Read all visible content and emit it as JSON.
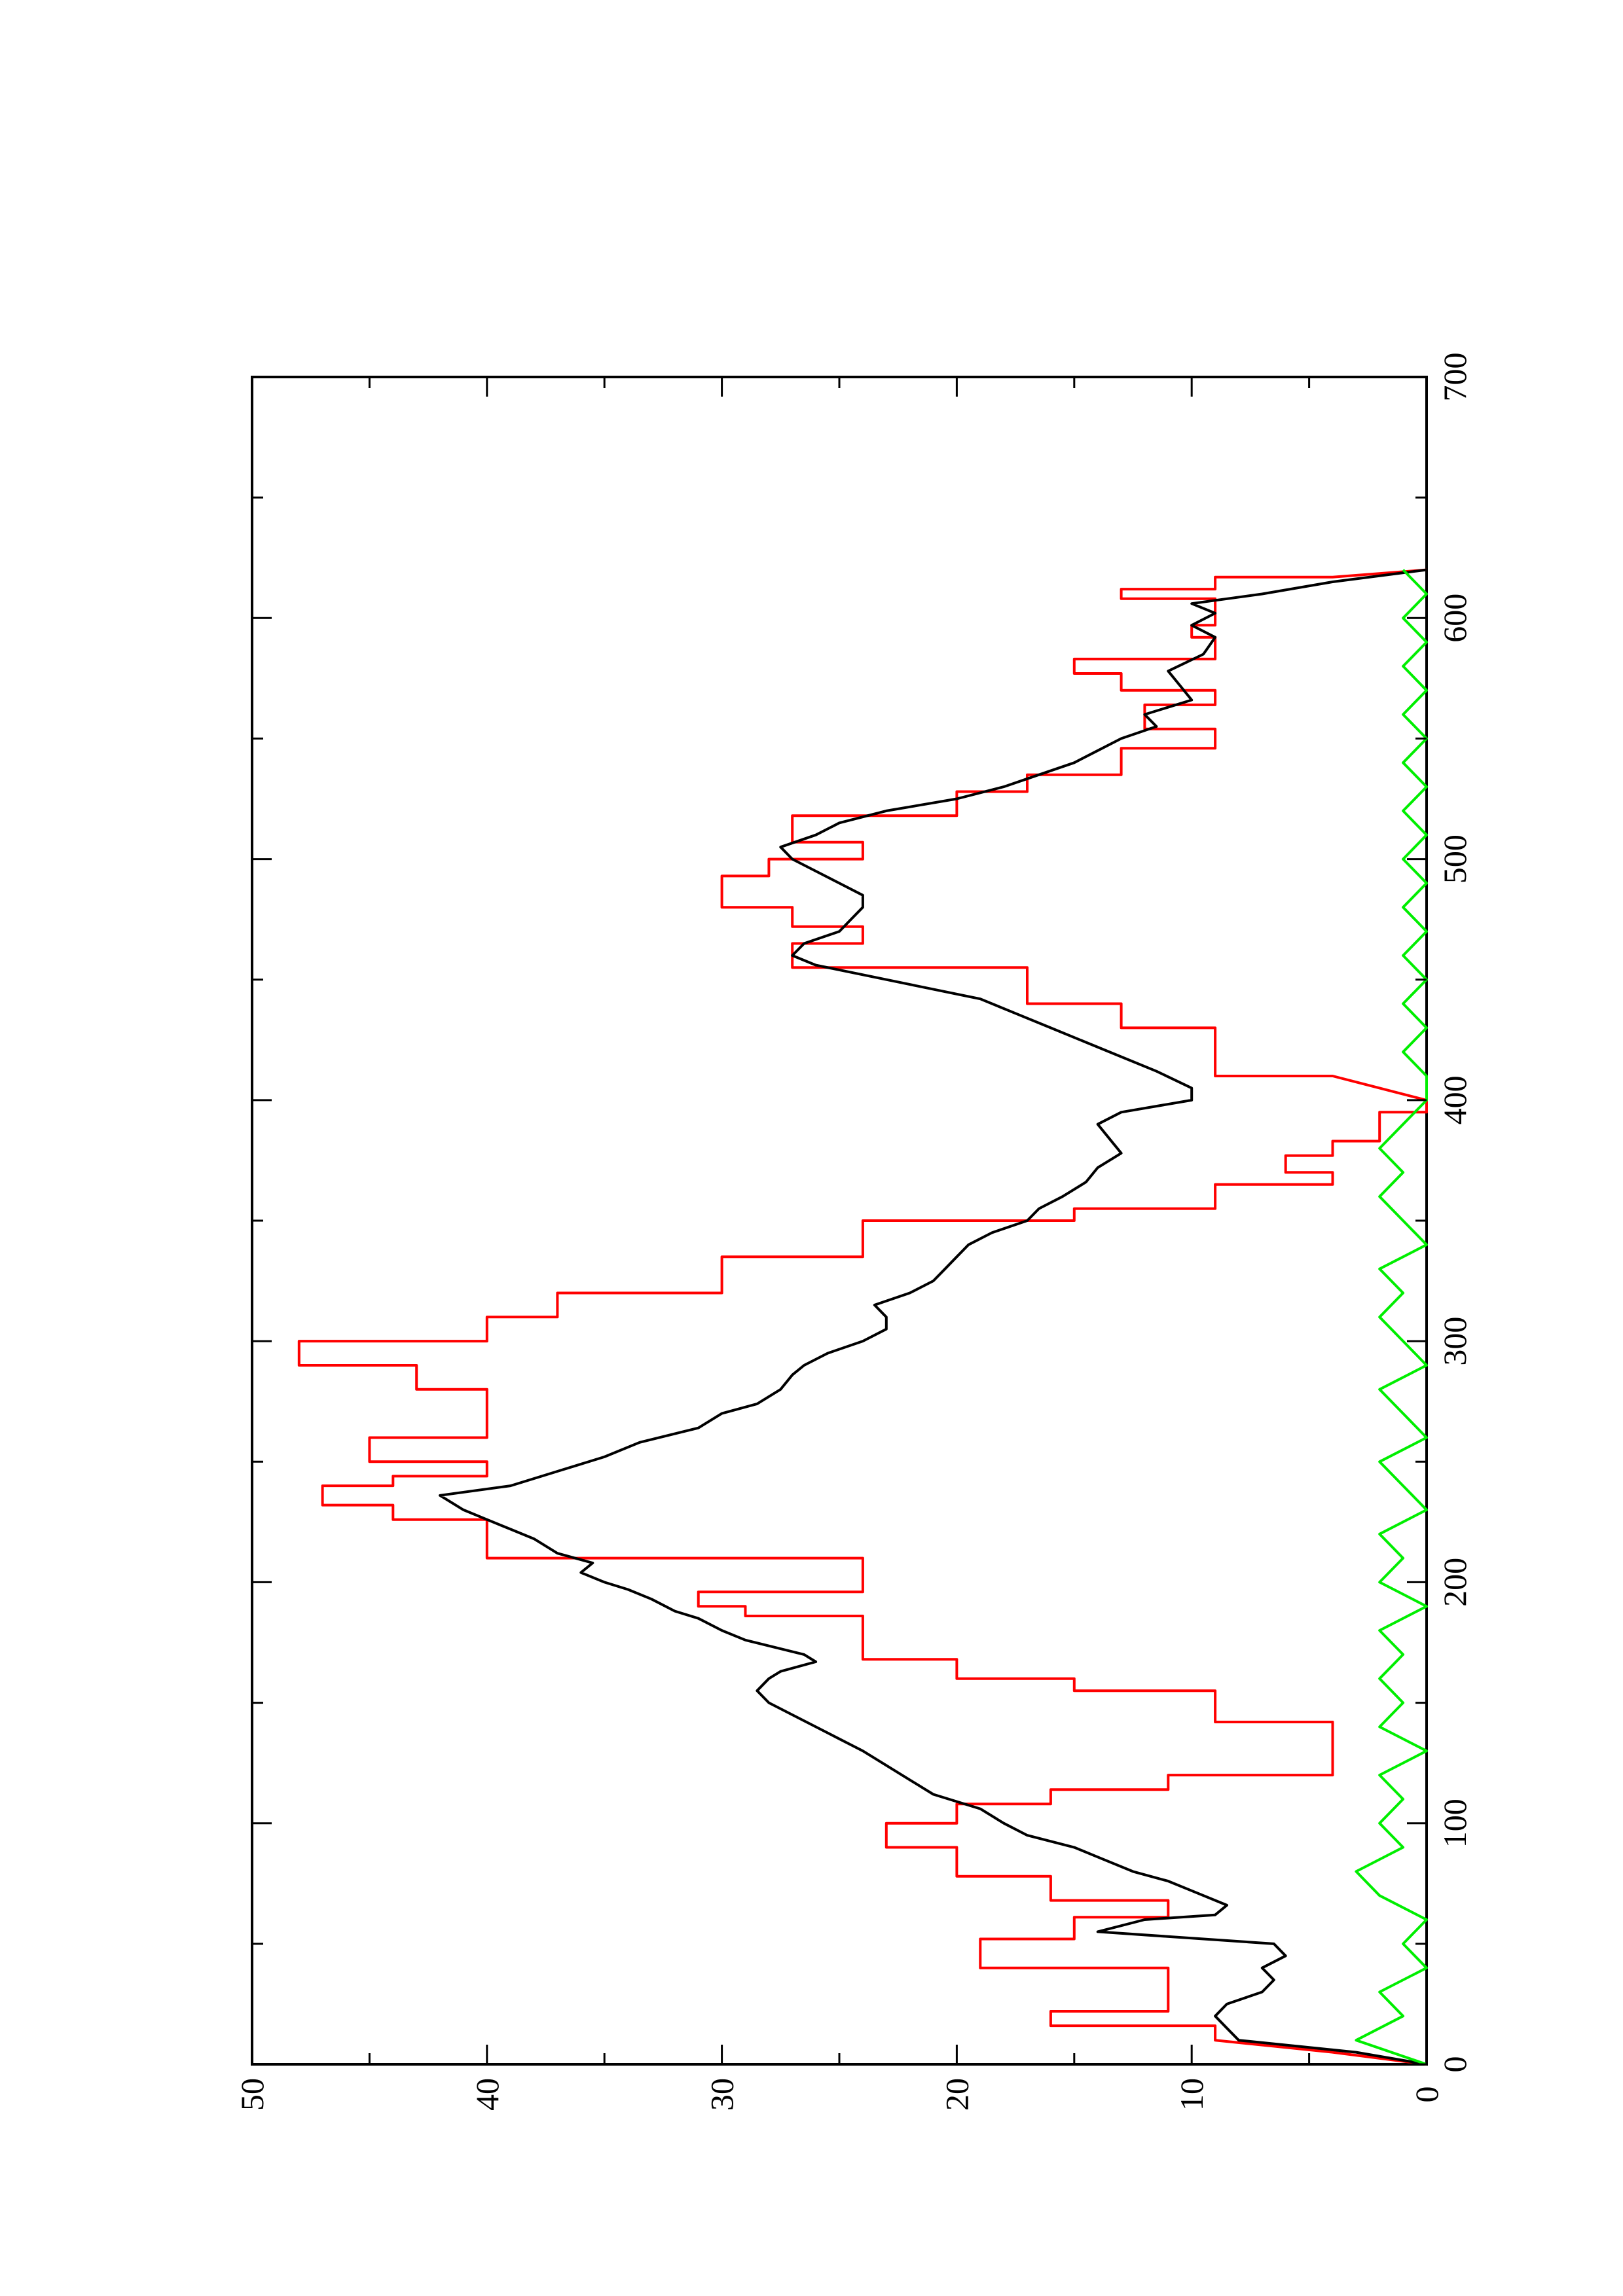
{
  "chart_data": {
    "type": "line",
    "orientation": "rotated-90-ccw",
    "title": "",
    "xlabel": "",
    "ylabel": "",
    "xlim": [
      0,
      700
    ],
    "ylim": [
      0,
      50
    ],
    "x_major_ticks": [
      0,
      100,
      200,
      300,
      400,
      500,
      600,
      700
    ],
    "x_minor_ticks": [
      50,
      150,
      250,
      350,
      450,
      550,
      650
    ],
    "y_major_ticks": [
      0,
      10,
      20,
      30,
      40,
      50
    ],
    "y_minor_ticks": [
      5,
      15,
      25,
      35,
      45
    ],
    "x_tick_labels": [
      "0",
      "100",
      "200",
      "300",
      "400",
      "500",
      "600",
      "700"
    ],
    "y_tick_labels": [
      "0",
      "10",
      "20",
      "30",
      "40",
      "50"
    ],
    "grid": false,
    "legend": "none",
    "series": [
      {
        "color": "#ff0000",
        "points": [
          [
            0,
            0
          ],
          [
            5,
            4
          ],
          [
            10,
            9
          ],
          [
            16,
            9
          ],
          [
            16,
            16
          ],
          [
            22,
            16
          ],
          [
            22,
            11
          ],
          [
            40,
            11
          ],
          [
            40,
            19
          ],
          [
            52,
            19
          ],
          [
            52,
            15
          ],
          [
            61,
            15
          ],
          [
            61,
            11
          ],
          [
            68,
            11
          ],
          [
            68,
            16
          ],
          [
            78,
            16
          ],
          [
            78,
            20
          ],
          [
            90,
            20
          ],
          [
            90,
            23
          ],
          [
            100,
            23
          ],
          [
            100,
            20
          ],
          [
            108,
            20
          ],
          [
            108,
            16
          ],
          [
            114,
            16
          ],
          [
            114,
            11
          ],
          [
            120,
            11
          ],
          [
            120,
            4
          ],
          [
            142,
            4
          ],
          [
            142,
            9
          ],
          [
            155,
            9
          ],
          [
            155,
            15
          ],
          [
            160,
            15
          ],
          [
            160,
            20
          ],
          [
            168,
            20
          ],
          [
            168,
            24
          ],
          [
            186,
            24
          ],
          [
            186,
            29
          ],
          [
            190,
            29
          ],
          [
            190,
            31
          ],
          [
            196,
            31
          ],
          [
            196,
            24
          ],
          [
            210,
            24
          ],
          [
            210,
            40
          ],
          [
            226,
            40
          ],
          [
            226,
            44
          ],
          [
            232,
            44
          ],
          [
            232,
            47
          ],
          [
            240,
            47
          ],
          [
            240,
            44
          ],
          [
            244,
            44
          ],
          [
            244,
            40
          ],
          [
            250,
            40
          ],
          [
            250,
            45
          ],
          [
            260,
            45
          ],
          [
            260,
            40
          ],
          [
            280,
            40
          ],
          [
            280,
            43
          ],
          [
            290,
            43
          ],
          [
            290,
            48
          ],
          [
            300,
            48
          ],
          [
            300,
            40
          ],
          [
            310,
            40
          ],
          [
            310,
            37
          ],
          [
            320,
            37
          ],
          [
            320,
            30
          ],
          [
            335,
            30
          ],
          [
            335,
            24
          ],
          [
            350,
            24
          ],
          [
            350,
            15
          ],
          [
            355,
            15
          ],
          [
            355,
            9
          ],
          [
            365,
            9
          ],
          [
            365,
            4
          ],
          [
            370,
            4
          ],
          [
            370,
            6
          ],
          [
            377,
            6
          ],
          [
            377,
            4
          ],
          [
            383,
            4
          ],
          [
            383,
            2
          ],
          [
            395,
            2
          ],
          [
            395,
            0
          ],
          [
            400,
            0
          ],
          [
            410,
            4
          ],
          [
            410,
            9
          ],
          [
            430,
            9
          ],
          [
            430,
            13
          ],
          [
            440,
            13
          ],
          [
            440,
            17
          ],
          [
            455,
            17
          ],
          [
            455,
            27
          ],
          [
            465,
            27
          ],
          [
            465,
            24
          ],
          [
            472,
            24
          ],
          [
            472,
            27
          ],
          [
            480,
            27
          ],
          [
            480,
            30
          ],
          [
            493,
            30
          ],
          [
            493,
            28
          ],
          [
            500,
            28
          ],
          [
            500,
            24
          ],
          [
            507,
            24
          ],
          [
            507,
            27
          ],
          [
            518,
            27
          ],
          [
            518,
            20
          ],
          [
            528,
            20
          ],
          [
            528,
            17
          ],
          [
            535,
            17
          ],
          [
            535,
            13
          ],
          [
            546,
            13
          ],
          [
            546,
            9
          ],
          [
            554,
            9
          ],
          [
            554,
            12
          ],
          [
            564,
            12
          ],
          [
            564,
            9
          ],
          [
            570,
            9
          ],
          [
            570,
            13
          ],
          [
            577,
            13
          ],
          [
            577,
            15
          ],
          [
            583,
            15
          ],
          [
            583,
            9
          ],
          [
            592,
            9
          ],
          [
            592,
            10
          ],
          [
            597,
            10
          ],
          [
            597,
            9
          ],
          [
            608,
            9
          ],
          [
            608,
            13
          ],
          [
            612,
            13
          ],
          [
            612,
            9
          ],
          [
            617,
            9
          ],
          [
            617,
            4
          ],
          [
            620,
            0
          ]
        ]
      },
      {
        "color": "#000000",
        "points": [
          [
            0,
            0
          ],
          [
            5,
            3
          ],
          [
            10,
            8
          ],
          [
            15,
            8.5
          ],
          [
            20,
            9
          ],
          [
            25,
            8.5
          ],
          [
            30,
            7
          ],
          [
            35,
            6.5
          ],
          [
            40,
            7
          ],
          [
            45,
            6
          ],
          [
            50,
            6.5
          ],
          [
            55,
            14
          ],
          [
            60,
            12
          ],
          [
            62,
            9
          ],
          [
            66,
            8.5
          ],
          [
            72,
            10
          ],
          [
            76,
            11
          ],
          [
            80,
            12.5
          ],
          [
            86,
            14
          ],
          [
            90,
            15
          ],
          [
            95,
            17
          ],
          [
            100,
            18
          ],
          [
            106,
            19
          ],
          [
            112,
            21
          ],
          [
            118,
            22
          ],
          [
            124,
            23
          ],
          [
            130,
            24
          ],
          [
            135,
            25
          ],
          [
            140,
            26
          ],
          [
            145,
            27
          ],
          [
            150,
            28
          ],
          [
            155,
            28.5
          ],
          [
            160,
            28
          ],
          [
            163,
            27.5
          ],
          [
            167,
            26
          ],
          [
            170,
            26.5
          ],
          [
            176,
            29
          ],
          [
            180,
            30
          ],
          [
            185,
            31
          ],
          [
            188,
            32
          ],
          [
            193,
            33
          ],
          [
            197,
            34
          ],
          [
            200,
            35
          ],
          [
            204,
            36
          ],
          [
            208,
            35.5
          ],
          [
            212,
            37
          ],
          [
            218,
            38
          ],
          [
            222,
            39
          ],
          [
            226,
            40
          ],
          [
            230,
            41
          ],
          [
            236,
            42
          ],
          [
            240,
            39
          ],
          [
            246,
            37
          ],
          [
            252,
            35
          ],
          [
            258,
            33.5
          ],
          [
            264,
            31
          ],
          [
            270,
            30
          ],
          [
            274,
            28.5
          ],
          [
            280,
            27.5
          ],
          [
            286,
            27
          ],
          [
            290,
            26.5
          ],
          [
            295,
            25.5
          ],
          [
            300,
            24
          ],
          [
            305,
            23
          ],
          [
            310,
            23
          ],
          [
            315,
            23.5
          ],
          [
            320,
            22
          ],
          [
            325,
            21
          ],
          [
            330,
            20.5
          ],
          [
            335,
            20
          ],
          [
            340,
            19.5
          ],
          [
            345,
            18.5
          ],
          [
            350,
            17
          ],
          [
            355,
            16.5
          ],
          [
            360,
            15.5
          ],
          [
            366,
            14.5
          ],
          [
            372,
            14
          ],
          [
            378,
            13
          ],
          [
            384,
            13.5
          ],
          [
            390,
            14
          ],
          [
            395,
            13
          ],
          [
            400,
            10
          ],
          [
            405,
            10
          ],
          [
            412,
            11.5
          ],
          [
            418,
            13
          ],
          [
            424,
            14.5
          ],
          [
            430,
            16
          ],
          [
            436,
            17.5
          ],
          [
            442,
            19
          ],
          [
            448,
            22
          ],
          [
            452,
            24
          ],
          [
            456,
            26
          ],
          [
            460,
            27
          ],
          [
            465,
            26.5
          ],
          [
            470,
            25
          ],
          [
            475,
            24.5
          ],
          [
            480,
            24
          ],
          [
            485,
            24
          ],
          [
            490,
            25
          ],
          [
            495,
            26
          ],
          [
            500,
            27
          ],
          [
            505,
            27.5
          ],
          [
            510,
            26
          ],
          [
            515,
            25
          ],
          [
            520,
            23
          ],
          [
            525,
            20
          ],
          [
            530,
            18
          ],
          [
            535,
            16.5
          ],
          [
            540,
            15
          ],
          [
            545,
            14
          ],
          [
            550,
            13
          ],
          [
            555,
            11.5
          ],
          [
            560,
            12
          ],
          [
            566,
            10
          ],
          [
            572,
            10.5
          ],
          [
            578,
            11
          ],
          [
            585,
            9.5
          ],
          [
            592,
            9
          ],
          [
            597,
            10
          ],
          [
            602,
            9
          ],
          [
            606,
            10
          ],
          [
            610,
            7
          ],
          [
            615,
            4
          ],
          [
            620,
            0
          ]
        ]
      },
      {
        "color": "#00ee00",
        "points": [
          [
            0,
            0
          ],
          [
            10,
            3
          ],
          [
            20,
            1
          ],
          [
            30,
            2
          ],
          [
            40,
            0
          ],
          [
            50,
            1
          ],
          [
            60,
            0
          ],
          [
            70,
            2
          ],
          [
            80,
            3
          ],
          [
            90,
            1
          ],
          [
            100,
            2
          ],
          [
            110,
            1
          ],
          [
            120,
            2
          ],
          [
            130,
            0
          ],
          [
            140,
            2
          ],
          [
            150,
            1
          ],
          [
            160,
            2
          ],
          [
            170,
            1
          ],
          [
            180,
            2
          ],
          [
            190,
            0
          ],
          [
            200,
            2
          ],
          [
            210,
            1
          ],
          [
            220,
            2
          ],
          [
            230,
            0
          ],
          [
            240,
            1
          ],
          [
            250,
            2
          ],
          [
            260,
            0
          ],
          [
            270,
            1
          ],
          [
            280,
            2
          ],
          [
            290,
            0
          ],
          [
            300,
            1
          ],
          [
            310,
            2
          ],
          [
            320,
            1
          ],
          [
            330,
            2
          ],
          [
            340,
            0
          ],
          [
            350,
            1
          ],
          [
            360,
            2
          ],
          [
            370,
            1
          ],
          [
            380,
            2
          ],
          [
            390,
            1
          ],
          [
            400,
            0
          ],
          [
            410,
            0
          ],
          [
            420,
            1
          ],
          [
            430,
            0
          ],
          [
            440,
            1
          ],
          [
            450,
            0
          ],
          [
            460,
            1
          ],
          [
            470,
            0
          ],
          [
            480,
            1
          ],
          [
            490,
            0
          ],
          [
            500,
            1
          ],
          [
            510,
            0
          ],
          [
            520,
            1
          ],
          [
            530,
            0
          ],
          [
            540,
            1
          ],
          [
            550,
            0
          ],
          [
            560,
            1
          ],
          [
            570,
            0
          ],
          [
            580,
            1
          ],
          [
            590,
            0
          ],
          [
            600,
            1
          ],
          [
            610,
            0
          ],
          [
            620,
            1
          ]
        ]
      }
    ]
  }
}
